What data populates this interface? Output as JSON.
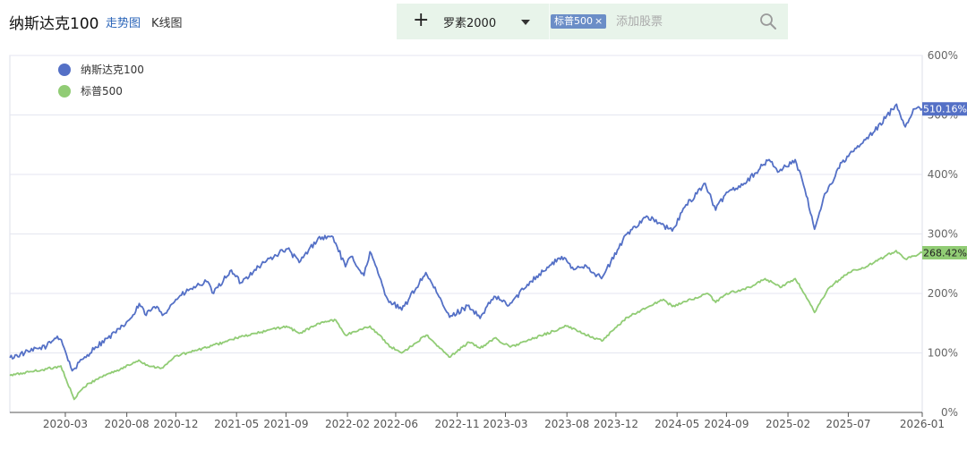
{
  "header": {
    "title": "纳斯达克100",
    "tab_trend": "走势图",
    "tab_kline": "K线图"
  },
  "toolbar": {
    "selected_label": "罗素2000",
    "chip_label": "标普500",
    "chip_close": "×",
    "input_placeholder": "添加股票"
  },
  "colors": {
    "nasdaq": "#5470c6",
    "sp500": "#91cc75",
    "grid": "#e4e6f0",
    "toolbar_bg": "#e8f4ea"
  },
  "icons": [
    "plus-icon",
    "chevron-down-icon",
    "close-icon",
    "search-icon"
  ],
  "chart_data": {
    "type": "line",
    "x_start": "2019-10-15",
    "x_end": "2026-01-01",
    "ylim": [
      0,
      600
    ],
    "y_unit": "%",
    "yticks": [
      "0%",
      "100%",
      "200%",
      "300%",
      "400%",
      "500%",
      "600%"
    ],
    "xticks": [
      {
        "label": "2020-03",
        "date": "2020-03-01"
      },
      {
        "label": "2020-08",
        "date": "2020-08-01"
      },
      {
        "label": "2020-12",
        "date": "2020-12-01"
      },
      {
        "label": "2021-05",
        "date": "2021-05-01"
      },
      {
        "label": "2021-09",
        "date": "2021-09-01"
      },
      {
        "label": "2022-02",
        "date": "2022-02-01"
      },
      {
        "label": "2022-06",
        "date": "2022-06-01"
      },
      {
        "label": "2022-11",
        "date": "2022-11-01"
      },
      {
        "label": "2023-03",
        "date": "2023-03-01"
      },
      {
        "label": "2023-08",
        "date": "2023-08-01"
      },
      {
        "label": "2023-12",
        "date": "2023-12-01"
      },
      {
        "label": "2024-05",
        "date": "2024-05-01"
      },
      {
        "label": "2024-09",
        "date": "2024-09-01"
      },
      {
        "label": "2025-02",
        "date": "2025-02-01"
      },
      {
        "label": "2025-07",
        "date": "2025-07-01"
      },
      {
        "label": "2026-01",
        "date": "2026-01-01"
      }
    ],
    "legend_position": "top-left",
    "grid": true,
    "series": [
      {
        "name": "纳斯达克100",
        "color": "#5470c6",
        "last_label": "510.16%",
        "points": [
          [
            "2019-10-15",
            92
          ],
          [
            "2019-12-01",
            102
          ],
          [
            "2020-01-15",
            112
          ],
          [
            "2020-02-10",
            128
          ],
          [
            "2020-02-20",
            122
          ],
          [
            "2020-03-18",
            70
          ],
          [
            "2020-04-15",
            90
          ],
          [
            "2020-05-15",
            110
          ],
          [
            "2020-06-15",
            125
          ],
          [
            "2020-07-15",
            140
          ],
          [
            "2020-08-20",
            165
          ],
          [
            "2020-09-01",
            183
          ],
          [
            "2020-09-15",
            165
          ],
          [
            "2020-10-15",
            178
          ],
          [
            "2020-11-01",
            165
          ],
          [
            "2020-12-01",
            190
          ],
          [
            "2021-01-01",
            205
          ],
          [
            "2021-02-15",
            220
          ],
          [
            "2021-03-05",
            200
          ],
          [
            "2021-04-15",
            238
          ],
          [
            "2021-05-12",
            218
          ],
          [
            "2021-06-15",
            240
          ],
          [
            "2021-07-15",
            255
          ],
          [
            "2021-08-15",
            268
          ],
          [
            "2021-09-05",
            275
          ],
          [
            "2021-10-04",
            252
          ],
          [
            "2021-11-20",
            293
          ],
          [
            "2021-12-27",
            295
          ],
          [
            "2022-01-27",
            245
          ],
          [
            "2022-02-10",
            262
          ],
          [
            "2022-03-14",
            230
          ],
          [
            "2022-03-29",
            270
          ],
          [
            "2022-05-12",
            190
          ],
          [
            "2022-06-16",
            172
          ],
          [
            "2022-08-15",
            235
          ],
          [
            "2022-10-13",
            160
          ],
          [
            "2022-11-30",
            180
          ],
          [
            "2022-12-28",
            158
          ],
          [
            "2023-02-01",
            195
          ],
          [
            "2023-03-10",
            180
          ],
          [
            "2023-05-01",
            220
          ],
          [
            "2023-07-19",
            262
          ],
          [
            "2023-08-18",
            240
          ],
          [
            "2023-09-15",
            248
          ],
          [
            "2023-10-26",
            225
          ],
          [
            "2023-12-28",
            300
          ],
          [
            "2024-02-15",
            330
          ],
          [
            "2024-04-19",
            305
          ],
          [
            "2024-05-20",
            345
          ],
          [
            "2024-07-10",
            385
          ],
          [
            "2024-08-05",
            340
          ],
          [
            "2024-09-01",
            370
          ],
          [
            "2024-10-15",
            385
          ],
          [
            "2024-12-16",
            425
          ],
          [
            "2025-01-10",
            405
          ],
          [
            "2025-02-19",
            425
          ],
          [
            "2025-03-15",
            375
          ],
          [
            "2025-04-08",
            308
          ],
          [
            "2025-04-30",
            360
          ],
          [
            "2025-06-15",
            420
          ],
          [
            "2025-07-31",
            450
          ],
          [
            "2025-09-01",
            470
          ],
          [
            "2025-10-29",
            518
          ],
          [
            "2025-11-20",
            480
          ],
          [
            "2025-12-10",
            510
          ],
          [
            "2026-01-01",
            510.16
          ]
        ]
      },
      {
        "name": "标普500",
        "color": "#91cc75",
        "last_label": "268.42%",
        "points": [
          [
            "2019-10-15",
            62
          ],
          [
            "2019-12-01",
            68
          ],
          [
            "2020-01-15",
            73
          ],
          [
            "2020-02-19",
            78
          ],
          [
            "2020-03-23",
            22
          ],
          [
            "2020-04-15",
            42
          ],
          [
            "2020-05-15",
            55
          ],
          [
            "2020-06-15",
            65
          ],
          [
            "2020-07-15",
            72
          ],
          [
            "2020-08-31",
            88
          ],
          [
            "2020-09-24",
            78
          ],
          [
            "2020-10-30",
            75
          ],
          [
            "2020-12-01",
            95
          ],
          [
            "2021-01-15",
            103
          ],
          [
            "2021-03-01",
            112
          ],
          [
            "2021-05-01",
            125
          ],
          [
            "2021-07-01",
            135
          ],
          [
            "2021-09-02",
            145
          ],
          [
            "2021-10-04",
            133
          ],
          [
            "2021-12-01",
            152
          ],
          [
            "2022-01-03",
            155
          ],
          [
            "2022-01-27",
            130
          ],
          [
            "2022-03-29",
            145
          ],
          [
            "2022-05-20",
            110
          ],
          [
            "2022-06-16",
            100
          ],
          [
            "2022-08-16",
            130
          ],
          [
            "2022-10-12",
            93
          ],
          [
            "2022-11-30",
            118
          ],
          [
            "2022-12-28",
            108
          ],
          [
            "2023-02-02",
            125
          ],
          [
            "2023-03-13",
            110
          ],
          [
            "2023-05-01",
            122
          ],
          [
            "2023-07-31",
            145
          ],
          [
            "2023-10-27",
            120
          ],
          [
            "2023-12-29",
            160
          ],
          [
            "2024-03-28",
            190
          ],
          [
            "2024-04-19",
            178
          ],
          [
            "2024-07-16",
            200
          ],
          [
            "2024-08-05",
            185
          ],
          [
            "2024-09-01",
            200
          ],
          [
            "2024-10-31",
            210
          ],
          [
            "2024-12-06",
            225
          ],
          [
            "2025-01-13",
            210
          ],
          [
            "2025-02-19",
            225
          ],
          [
            "2025-03-13",
            200
          ],
          [
            "2025-04-08",
            168
          ],
          [
            "2025-05-15",
            210
          ],
          [
            "2025-07-01",
            235
          ],
          [
            "2025-08-15",
            245
          ],
          [
            "2025-10-28",
            272
          ],
          [
            "2025-11-20",
            258
          ],
          [
            "2026-01-01",
            268.42
          ]
        ]
      }
    ]
  }
}
